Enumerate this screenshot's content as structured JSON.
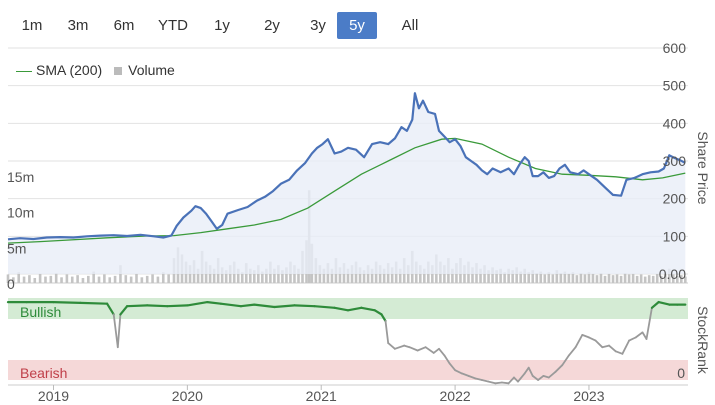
{
  "range_buttons": [
    {
      "label": "1m",
      "active": false
    },
    {
      "label": "3m",
      "active": false
    },
    {
      "label": "6m",
      "active": false
    },
    {
      "label": "YTD",
      "active": false
    },
    {
      "label": "1y",
      "active": false
    },
    {
      "label": "2y",
      "active": false
    },
    {
      "label": "3y",
      "active": false
    },
    {
      "label": "5y",
      "active": true
    },
    {
      "label": "All",
      "active": false
    }
  ],
  "legend": {
    "sma_label": "SMA (200)",
    "volume_label": "Volume"
  },
  "colors": {
    "price": "#4a72b8",
    "sma": "#3a9a3a",
    "volume": "#c4c4c4",
    "bullish_band": "#d4ebd4",
    "bearish_band": "#f5d8d8",
    "rank_bull": "#2e8b3a",
    "rank_bear": "#9a9a9a",
    "active_button": "#4b7cc7"
  },
  "chart_data": {
    "type": "line",
    "price_axis": {
      "label": "Share Price",
      "ticks": [
        "600",
        "500",
        "400",
        "300",
        "200",
        "100",
        "0.00"
      ],
      "range": [
        0,
        600
      ]
    },
    "volume_axis": {
      "ticks": [
        "15m",
        "10m",
        "5m",
        "0"
      ],
      "range": [
        0,
        15
      ]
    },
    "x_ticks": [
      "2019",
      "2020",
      "2021",
      "2022",
      "2023"
    ],
    "stockrank_axis": {
      "label": "StockRank",
      "bullish_label": "Bullish",
      "bearish_label": "Bearish",
      "zero_label": "0"
    },
    "price": [
      [
        2018.66,
        92
      ],
      [
        2018.75,
        95
      ],
      [
        2018.85,
        93
      ],
      [
        2018.95,
        97
      ],
      [
        2019.05,
        98
      ],
      [
        2019.15,
        97
      ],
      [
        2019.25,
        100
      ],
      [
        2019.35,
        102
      ],
      [
        2019.45,
        103
      ],
      [
        2019.55,
        101
      ],
      [
        2019.65,
        104
      ],
      [
        2019.75,
        100
      ],
      [
        2019.82,
        97
      ],
      [
        2019.88,
        102
      ],
      [
        2019.92,
        128
      ],
      [
        2019.97,
        150
      ],
      [
        2020.03,
        168
      ],
      [
        2020.06,
        180
      ],
      [
        2020.1,
        175
      ],
      [
        2020.14,
        160
      ],
      [
        2020.18,
        140
      ],
      [
        2020.22,
        120
      ],
      [
        2020.26,
        130
      ],
      [
        2020.3,
        160
      ],
      [
        2020.38,
        170
      ],
      [
        2020.45,
        178
      ],
      [
        2020.52,
        195
      ],
      [
        2020.58,
        205
      ],
      [
        2020.64,
        220
      ],
      [
        2020.7,
        240
      ],
      [
        2020.76,
        250
      ],
      [
        2020.82,
        275
      ],
      [
        2020.88,
        295
      ],
      [
        2020.93,
        320
      ],
      [
        2020.97,
        335
      ],
      [
        2021.01,
        345
      ],
      [
        2021.05,
        358
      ],
      [
        2021.1,
        320
      ],
      [
        2021.15,
        325
      ],
      [
        2021.2,
        335
      ],
      [
        2021.26,
        330
      ],
      [
        2021.32,
        310
      ],
      [
        2021.38,
        345
      ],
      [
        2021.44,
        350
      ],
      [
        2021.5,
        345
      ],
      [
        2021.55,
        360
      ],
      [
        2021.6,
        390
      ],
      [
        2021.64,
        380
      ],
      [
        2021.68,
        410
      ],
      [
        2021.7,
        480
      ],
      [
        2021.73,
        440
      ],
      [
        2021.76,
        460
      ],
      [
        2021.8,
        430
      ],
      [
        2021.85,
        425
      ],
      [
        2021.88,
        380
      ],
      [
        2021.92,
        365
      ],
      [
        2021.96,
        350
      ],
      [
        2022.0,
        358
      ],
      [
        2022.04,
        340
      ],
      [
        2022.08,
        310
      ],
      [
        2022.12,
        300
      ],
      [
        2022.16,
        290
      ],
      [
        2022.2,
        275
      ],
      [
        2022.24,
        265
      ],
      [
        2022.28,
        280
      ],
      [
        2022.34,
        270
      ],
      [
        2022.4,
        280
      ],
      [
        2022.44,
        265
      ],
      [
        2022.48,
        290
      ],
      [
        2022.52,
        310
      ],
      [
        2022.55,
        300
      ],
      [
        2022.58,
        260
      ],
      [
        2022.62,
        260
      ],
      [
        2022.66,
        270
      ],
      [
        2022.7,
        255
      ],
      [
        2022.74,
        260
      ],
      [
        2022.78,
        280
      ],
      [
        2022.82,
        290
      ],
      [
        2022.86,
        270
      ],
      [
        2022.92,
        265
      ],
      [
        2022.96,
        275
      ],
      [
        2023.0,
        265
      ],
      [
        2023.06,
        250
      ],
      [
        2023.12,
        230
      ],
      [
        2023.18,
        210
      ],
      [
        2023.24,
        208
      ],
      [
        2023.28,
        250
      ],
      [
        2023.34,
        255
      ],
      [
        2023.4,
        265
      ],
      [
        2023.46,
        270
      ],
      [
        2023.52,
        272
      ],
      [
        2023.56,
        280
      ],
      [
        2023.6,
        315
      ],
      [
        2023.64,
        308
      ],
      [
        2023.68,
        302
      ],
      [
        2023.72,
        295
      ]
    ],
    "sma_200": [
      [
        2018.66,
        82
      ],
      [
        2018.9,
        86
      ],
      [
        2019.1,
        90
      ],
      [
        2019.4,
        96
      ],
      [
        2019.7,
        101
      ],
      [
        2019.9,
        102
      ],
      [
        2020.1,
        110
      ],
      [
        2020.3,
        120
      ],
      [
        2020.5,
        130
      ],
      [
        2020.7,
        145
      ],
      [
        2020.9,
        175
      ],
      [
        2021.1,
        220
      ],
      [
        2021.3,
        265
      ],
      [
        2021.5,
        300
      ],
      [
        2021.7,
        335
      ],
      [
        2021.9,
        358
      ],
      [
        2022.0,
        360
      ],
      [
        2022.2,
        345
      ],
      [
        2022.4,
        310
      ],
      [
        2022.6,
        280
      ],
      [
        2022.8,
        265
      ],
      [
        2023.0,
        262
      ],
      [
        2023.2,
        258
      ],
      [
        2023.4,
        250
      ],
      [
        2023.55,
        255
      ],
      [
        2023.72,
        268
      ]
    ],
    "volume": [
      [
        2018.66,
        1.2
      ],
      [
        2018.7,
        0.8
      ],
      [
        2018.74,
        1.5
      ],
      [
        2018.78,
        0.9
      ],
      [
        2018.82,
        1.1
      ],
      [
        2018.86,
        0.7
      ],
      [
        2018.9,
        1.3
      ],
      [
        2018.94,
        0.9
      ],
      [
        2018.98,
        1.0
      ],
      [
        2019.02,
        1.4
      ],
      [
        2019.06,
        0.8
      ],
      [
        2019.1,
        1.2
      ],
      [
        2019.14,
        0.9
      ],
      [
        2019.18,
        1.1
      ],
      [
        2019.22,
        0.7
      ],
      [
        2019.26,
        1.0
      ],
      [
        2019.3,
        1.6
      ],
      [
        2019.34,
        0.9
      ],
      [
        2019.38,
        1.2
      ],
      [
        2019.42,
        0.8
      ],
      [
        2019.46,
        1.0
      ],
      [
        2019.5,
        2.5
      ],
      [
        2019.54,
        1.1
      ],
      [
        2019.58,
        0.9
      ],
      [
        2019.62,
        1.3
      ],
      [
        2019.66,
        0.8
      ],
      [
        2019.7,
        1.0
      ],
      [
        2019.74,
        1.2
      ],
      [
        2019.78,
        0.9
      ],
      [
        2019.82,
        1.5
      ],
      [
        2019.86,
        1.2
      ],
      [
        2019.9,
        3.5
      ],
      [
        2019.93,
        5.0
      ],
      [
        2019.96,
        4.0
      ],
      [
        2019.99,
        3.0
      ],
      [
        2020.02,
        2.5
      ],
      [
        2020.05,
        3.2
      ],
      [
        2020.08,
        2.0
      ],
      [
        2020.11,
        4.5
      ],
      [
        2020.14,
        3.0
      ],
      [
        2020.17,
        2.5
      ],
      [
        2020.2,
        2.0
      ],
      [
        2020.23,
        3.5
      ],
      [
        2020.26,
        2.2
      ],
      [
        2020.29,
        1.8
      ],
      [
        2020.32,
        2.5
      ],
      [
        2020.35,
        3.0
      ],
      [
        2020.38,
        2.0
      ],
      [
        2020.41,
        1.5
      ],
      [
        2020.44,
        2.8
      ],
      [
        2020.47,
        2.0
      ],
      [
        2020.5,
        1.8
      ],
      [
        2020.53,
        2.5
      ],
      [
        2020.56,
        1.6
      ],
      [
        2020.59,
        2.0
      ],
      [
        2020.62,
        3.0
      ],
      [
        2020.65,
        2.0
      ],
      [
        2020.68,
        2.5
      ],
      [
        2020.71,
        1.8
      ],
      [
        2020.74,
        2.2
      ],
      [
        2020.77,
        3.0
      ],
      [
        2020.8,
        2.5
      ],
      [
        2020.83,
        2.0
      ],
      [
        2020.86,
        4.5
      ],
      [
        2020.89,
        6.0
      ],
      [
        2020.91,
        13.0
      ],
      [
        2020.93,
        5.5
      ],
      [
        2020.96,
        3.5
      ],
      [
        2020.99,
        2.5
      ],
      [
        2021.02,
        2.0
      ],
      [
        2021.05,
        2.8
      ],
      [
        2021.08,
        2.0
      ],
      [
        2021.11,
        3.5
      ],
      [
        2021.14,
        2.2
      ],
      [
        2021.17,
        2.8
      ],
      [
        2021.2,
        2.0
      ],
      [
        2021.23,
        2.5
      ],
      [
        2021.26,
        3.0
      ],
      [
        2021.29,
        2.2
      ],
      [
        2021.32,
        1.8
      ],
      [
        2021.35,
        2.5
      ],
      [
        2021.38,
        2.0
      ],
      [
        2021.41,
        3.0
      ],
      [
        2021.44,
        2.5
      ],
      [
        2021.47,
        2.0
      ],
      [
        2021.5,
        2.8
      ],
      [
        2021.53,
        2.2
      ],
      [
        2021.56,
        3.0
      ],
      [
        2021.59,
        2.0
      ],
      [
        2021.62,
        3.5
      ],
      [
        2021.65,
        2.5
      ],
      [
        2021.68,
        4.5
      ],
      [
        2021.71,
        3.0
      ],
      [
        2021.74,
        2.5
      ],
      [
        2021.77,
        2.0
      ],
      [
        2021.8,
        3.0
      ],
      [
        2021.83,
        2.5
      ],
      [
        2021.86,
        4.0
      ],
      [
        2021.89,
        3.0
      ],
      [
        2021.92,
        2.5
      ],
      [
        2021.95,
        3.5
      ],
      [
        2021.98,
        2.0
      ],
      [
        2022.01,
        2.8
      ],
      [
        2022.04,
        3.5
      ],
      [
        2022.07,
        2.5
      ],
      [
        2022.1,
        3.0
      ],
      [
        2022.13,
        2.2
      ],
      [
        2022.16,
        2.8
      ],
      [
        2022.19,
        2.0
      ],
      [
        2022.22,
        2.5
      ],
      [
        2022.25,
        1.8
      ],
      [
        2022.28,
        2.2
      ],
      [
        2022.31,
        1.8
      ],
      [
        2022.34,
        2.0
      ],
      [
        2022.37,
        1.5
      ],
      [
        2022.4,
        2.0
      ],
      [
        2022.43,
        1.8
      ],
      [
        2022.46,
        2.2
      ],
      [
        2022.49,
        1.6
      ],
      [
        2022.52,
        2.0
      ],
      [
        2022.55,
        1.5
      ],
      [
        2022.58,
        1.8
      ],
      [
        2022.61,
        1.4
      ],
      [
        2022.64,
        1.6
      ],
      [
        2022.67,
        1.2
      ],
      [
        2022.7,
        1.5
      ],
      [
        2022.73,
        1.2
      ],
      [
        2022.76,
        1.8
      ],
      [
        2022.79,
        1.4
      ],
      [
        2022.82,
        1.6
      ],
      [
        2022.85,
        1.3
      ],
      [
        2022.88,
        1.5
      ],
      [
        2022.91,
        1.1
      ],
      [
        2022.94,
        1.4
      ],
      [
        2022.97,
        1.2
      ],
      [
        2023.0,
        1.5
      ],
      [
        2023.03,
        1.3
      ],
      [
        2023.06,
        1.1
      ],
      [
        2023.09,
        1.4
      ],
      [
        2023.12,
        1.0
      ],
      [
        2023.15,
        1.3
      ],
      [
        2023.18,
        1.1
      ],
      [
        2023.21,
        1.2
      ],
      [
        2023.24,
        1.0
      ],
      [
        2023.27,
        1.4
      ],
      [
        2023.3,
        1.2
      ],
      [
        2023.33,
        1.3
      ],
      [
        2023.36,
        1.0
      ],
      [
        2023.39,
        1.2
      ],
      [
        2023.42,
        0.9
      ],
      [
        2023.45,
        1.1
      ],
      [
        2023.48,
        1.0
      ],
      [
        2023.51,
        1.3
      ],
      [
        2023.54,
        1.0
      ],
      [
        2023.57,
        1.5
      ],
      [
        2023.6,
        2.0
      ],
      [
        2023.63,
        1.2
      ],
      [
        2023.66,
        1.0
      ],
      [
        2023.69,
        1.1
      ],
      [
        2023.72,
        0.9
      ]
    ],
    "stockrank": [
      [
        2018.66,
        95
      ],
      [
        2018.8,
        95
      ],
      [
        2019.0,
        95
      ],
      [
        2019.2,
        94
      ],
      [
        2019.4,
        93
      ],
      [
        2019.45,
        80
      ],
      [
        2019.48,
        40
      ],
      [
        2019.5,
        80
      ],
      [
        2019.55,
        90
      ],
      [
        2019.7,
        91
      ],
      [
        2019.85,
        90
      ],
      [
        2020.0,
        91
      ],
      [
        2020.15,
        95
      ],
      [
        2020.25,
        93
      ],
      [
        2020.4,
        90
      ],
      [
        2020.5,
        92
      ],
      [
        2020.65,
        89
      ],
      [
        2020.8,
        91
      ],
      [
        2020.95,
        90
      ],
      [
        2021.1,
        88
      ],
      [
        2021.2,
        85
      ],
      [
        2021.3,
        88
      ],
      [
        2021.4,
        85
      ],
      [
        2021.45,
        80
      ],
      [
        2021.48,
        72
      ],
      [
        2021.5,
        45
      ],
      [
        2021.55,
        38
      ],
      [
        2021.62,
        42
      ],
      [
        2021.66,
        40
      ],
      [
        2021.72,
        36
      ],
      [
        2021.78,
        40
      ],
      [
        2021.84,
        33
      ],
      [
        2021.88,
        38
      ],
      [
        2021.92,
        30
      ],
      [
        2021.96,
        20
      ],
      [
        2022.0,
        12
      ],
      [
        2022.05,
        8
      ],
      [
        2022.1,
        5
      ],
      [
        2022.15,
        2
      ],
      [
        2022.2,
        0
      ],
      [
        2022.25,
        -2
      ],
      [
        2022.3,
        -4
      ],
      [
        2022.35,
        -3
      ],
      [
        2022.4,
        -4
      ],
      [
        2022.44,
        3
      ],
      [
        2022.47,
        -2
      ],
      [
        2022.52,
        8
      ],
      [
        2022.55,
        15
      ],
      [
        2022.58,
        5
      ],
      [
        2022.62,
        0
      ],
      [
        2022.66,
        5
      ],
      [
        2022.7,
        3
      ],
      [
        2022.75,
        10
      ],
      [
        2022.8,
        18
      ],
      [
        2022.85,
        30
      ],
      [
        2022.9,
        40
      ],
      [
        2022.95,
        55
      ],
      [
        2023.0,
        52
      ],
      [
        2023.05,
        48
      ],
      [
        2023.1,
        40
      ],
      [
        2023.15,
        42
      ],
      [
        2023.2,
        35
      ],
      [
        2023.25,
        32
      ],
      [
        2023.3,
        48
      ],
      [
        2023.35,
        52
      ],
      [
        2023.4,
        58
      ],
      [
        2023.43,
        50
      ],
      [
        2023.47,
        88
      ],
      [
        2023.52,
        95
      ],
      [
        2023.6,
        92
      ],
      [
        2023.66,
        92
      ],
      [
        2023.72,
        92
      ]
    ]
  }
}
